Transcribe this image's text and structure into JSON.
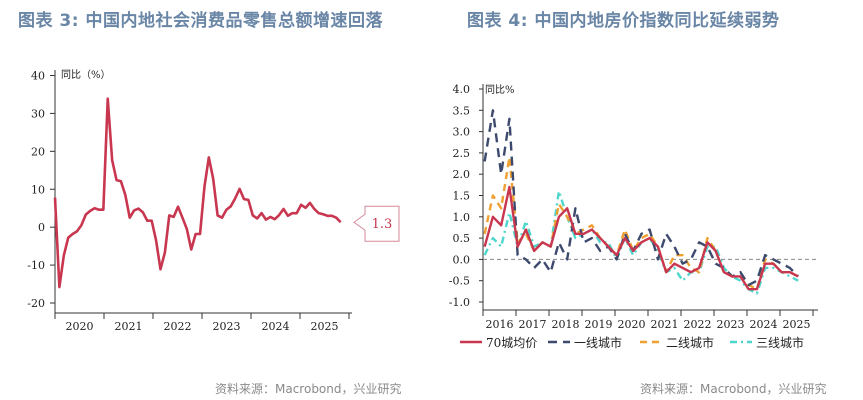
{
  "left": {
    "title": "图表 3:  中国内地社会消费品零售总额增速回落",
    "source": "资料来源：Macrobond，兴业研究"
  },
  "right": {
    "title": "图表 4:  中国内地房价指数同比延续弱势",
    "source": "资料来源：Macrobond，兴业研究"
  },
  "chart_data": [
    {
      "type": "line",
      "ylabel": "同比（%）",
      "ylim": [
        -20,
        40
      ],
      "yticks": [
        -20,
        -10,
        0,
        10,
        20,
        30,
        40
      ],
      "xlim": [
        2020,
        2026
      ],
      "xticks": [
        "2020",
        "2021",
        "2022",
        "2023",
        "2024",
        "2025"
      ],
      "grid": false,
      "annotation": "1.3",
      "color": "#c8374f",
      "x_start": 2020,
      "x_step_months": 1,
      "values": [
        7.8,
        -15.8,
        -7.5,
        -2.8,
        -1.8,
        -1.1,
        0.5,
        3.3,
        4.3,
        5.0,
        4.6,
        4.6,
        33.9,
        17.7,
        12.4,
        12.1,
        8.5,
        2.5,
        4.4,
        4.9,
        3.9,
        1.7,
        1.7,
        -3.5,
        -11.1,
        -6.7,
        3.1,
        2.7,
        5.4,
        2.5,
        -0.5,
        -5.9,
        -1.8,
        -1.8,
        10.6,
        18.4,
        12.7,
        3.1,
        2.5,
        4.6,
        5.5,
        7.6,
        10.1,
        7.4,
        7.2,
        3.1,
        2.3,
        3.7,
        2.0,
        2.7,
        2.1,
        3.2,
        4.8,
        3.0,
        3.7,
        3.7,
        5.9,
        5.1,
        6.4,
        4.8,
        3.7,
        3.4,
        3.0,
        3.0,
        2.5,
        1.3
      ]
    },
    {
      "type": "line",
      "ylabel": "同比%",
      "ylim": [
        -1.0,
        4.0
      ],
      "yticks": [
        "-1.0",
        "-0.5",
        "0.0",
        "0.5",
        "1.0",
        "1.5",
        "2.0",
        "2.5",
        "3.0",
        "3.5",
        "4.0"
      ],
      "xlim": [
        2016,
        2026
      ],
      "xticks": [
        "2016",
        "2017",
        "2018",
        "2019",
        "2020",
        "2021",
        "2022",
        "2023",
        "2024",
        "2025"
      ],
      "grid": false,
      "legend": "bottom",
      "x_start": 2016,
      "x_step_months": 3,
      "series": [
        {
          "name": "70城均价",
          "color": "#c8374f",
          "dash": "solid",
          "values": [
            0.3,
            1.0,
            0.8,
            1.7,
            0.3,
            0.7,
            0.2,
            0.4,
            0.3,
            1.0,
            1.2,
            0.6,
            0.6,
            0.7,
            0.5,
            0.3,
            0.1,
            0.5,
            0.2,
            0.4,
            0.5,
            0.3,
            -0.3,
            -0.1,
            -0.2,
            -0.3,
            -0.2,
            0.4,
            0.2,
            -0.3,
            -0.4,
            -0.4,
            -0.7,
            -0.7,
            -0.1,
            -0.1,
            -0.3,
            -0.3,
            -0.4
          ]
        },
        {
          "name": "一线城市",
          "color": "#3d4a6e",
          "dash": "long",
          "values": [
            2.3,
            3.5,
            2.0,
            3.3,
            0.1,
            0.0,
            -0.2,
            0.0,
            -0.3,
            0.4,
            0.0,
            1.2,
            0.4,
            0.5,
            0.2,
            0.3,
            0.0,
            0.6,
            0.2,
            0.6,
            0.7,
            0.0,
            0.6,
            0.3,
            -0.1,
            0.0,
            0.4,
            0.3,
            -0.1,
            -0.2,
            -0.4,
            -0.3,
            -0.6,
            -0.5,
            0.1,
            0.0,
            -0.1,
            -0.2,
            -0.4
          ]
        },
        {
          "name": "二线城市",
          "color": "#f0a030",
          "dash": "medium",
          "values": [
            0.6,
            1.5,
            1.2,
            2.4,
            0.4,
            0.6,
            0.2,
            0.4,
            0.3,
            1.3,
            1.0,
            0.6,
            0.7,
            0.8,
            0.5,
            0.3,
            0.1,
            0.7,
            0.2,
            0.5,
            0.6,
            0.3,
            -0.3,
            0.1,
            0.1,
            -0.2,
            -0.3,
            0.5,
            0.2,
            -0.3,
            -0.4,
            -0.4,
            -0.6,
            -0.7,
            0.0,
            -0.1,
            -0.3,
            -0.3,
            -0.4
          ]
        },
        {
          "name": "三线城市",
          "color": "#4fd6cc",
          "dash": "dashdot",
          "values": [
            0.1,
            0.5,
            0.3,
            1.1,
            0.3,
            0.9,
            0.3,
            0.4,
            0.3,
            1.6,
            1.0,
            0.5,
            0.6,
            0.7,
            0.4,
            0.4,
            0.0,
            0.5,
            0.1,
            0.4,
            0.5,
            0.2,
            -0.3,
            -0.2,
            -0.5,
            -0.3,
            -0.3,
            0.3,
            0.3,
            -0.2,
            -0.4,
            -0.5,
            -0.7,
            -0.8,
            -0.2,
            -0.2,
            -0.3,
            -0.4,
            -0.5
          ]
        }
      ]
    }
  ]
}
